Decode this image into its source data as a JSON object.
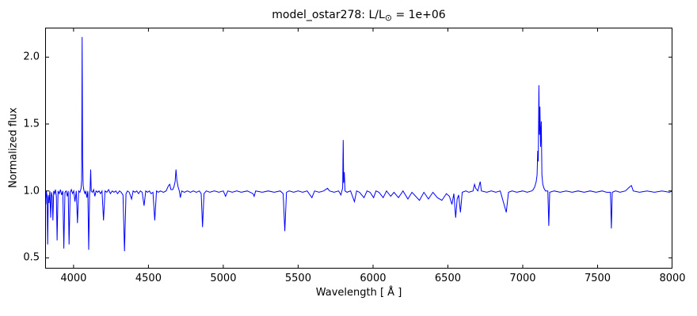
{
  "title": {
    "prefix": "model_ostar278: L/L",
    "sub": "⊙",
    "suffix": " = 1e+06"
  },
  "chart_data": {
    "type": "line",
    "title": "model_ostar278: L/L⊙ = 1e+06",
    "xlabel": "Wavelength [ Å ]",
    "ylabel": "Normalized flux",
    "xlim": [
      3810,
      8000
    ],
    "ylim": [
      0.42,
      2.22
    ],
    "grid": false,
    "legend": "none",
    "line_color": "#0000ff",
    "axis_color": "#000000",
    "x_ticks": [
      {
        "value": 4000,
        "label": "4000"
      },
      {
        "value": 4500,
        "label": "4500"
      },
      {
        "value": 5000,
        "label": "5000"
      },
      {
        "value": 5500,
        "label": "5500"
      },
      {
        "value": 6000,
        "label": "6000"
      },
      {
        "value": 6500,
        "label": "6500"
      },
      {
        "value": 7000,
        "label": "7000"
      },
      {
        "value": 7500,
        "label": "7500"
      },
      {
        "value": 8000,
        "label": "8000"
      }
    ],
    "y_ticks": [
      {
        "value": 0.5,
        "label": "0.5"
      },
      {
        "value": 1.0,
        "label": "1.0"
      },
      {
        "value": 1.5,
        "label": "1.5"
      },
      {
        "value": 2.0,
        "label": "2.0"
      }
    ],
    "points": [
      [
        3812,
        0.97
      ],
      [
        3815,
        0.9
      ],
      [
        3818,
        1.0
      ],
      [
        3823,
        0.95
      ],
      [
        3827,
        0.6
      ],
      [
        3831,
        0.97
      ],
      [
        3836,
        0.91
      ],
      [
        3841,
        1.0
      ],
      [
        3847,
        0.8
      ],
      [
        3852,
        0.99
      ],
      [
        3857,
        0.96
      ],
      [
        3862,
        0.78
      ],
      [
        3867,
        1.0
      ],
      [
        3873,
        0.98
      ],
      [
        3879,
        1.01
      ],
      [
        3885,
        0.96
      ],
      [
        3890,
        0.63
      ],
      [
        3896,
        1.0
      ],
      [
        3904,
        0.98
      ],
      [
        3912,
        1.01
      ],
      [
        3920,
        0.97
      ],
      [
        3928,
        1.0
      ],
      [
        3935,
        0.57
      ],
      [
        3942,
        0.99
      ],
      [
        3950,
        1.0
      ],
      [
        3958,
        0.96
      ],
      [
        3964,
        1.0
      ],
      [
        3970,
        0.6
      ],
      [
        3977,
        0.99
      ],
      [
        3985,
        1.01
      ],
      [
        3993,
        0.98
      ],
      [
        4001,
        1.0
      ],
      [
        4009,
        0.92
      ],
      [
        4018,
        1.0
      ],
      [
        4026,
        0.76
      ],
      [
        4034,
        1.0
      ],
      [
        4042,
        0.99
      ],
      [
        4050,
        1.02
      ],
      [
        4054,
        1.08
      ],
      [
        4057,
        2.15
      ],
      [
        4060,
        1.25
      ],
      [
        4064,
        1.04
      ],
      [
        4070,
        1.0
      ],
      [
        4076,
        0.98
      ],
      [
        4082,
        1.0
      ],
      [
        4089,
        0.95
      ],
      [
        4095,
        1.0
      ],
      [
        4101,
        0.56
      ],
      [
        4107,
        0.98
      ],
      [
        4110,
        1.0
      ],
      [
        4114,
        1.16
      ],
      [
        4118,
        1.0
      ],
      [
        4126,
        0.99
      ],
      [
        4134,
        1.01
      ],
      [
        4142,
        0.96
      ],
      [
        4150,
        1.0
      ],
      [
        4160,
        0.99
      ],
      [
        4170,
        1.0
      ],
      [
        4180,
        0.98
      ],
      [
        4190,
        1.0
      ],
      [
        4200,
        0.78
      ],
      [
        4210,
        1.0
      ],
      [
        4222,
        0.99
      ],
      [
        4234,
        1.01
      ],
      [
        4246,
        0.98
      ],
      [
        4258,
        1.0
      ],
      [
        4270,
        0.99
      ],
      [
        4282,
        1.0
      ],
      [
        4294,
        0.98
      ],
      [
        4306,
        1.0
      ],
      [
        4318,
        0.99
      ],
      [
        4330,
        0.97
      ],
      [
        4340,
        0.55
      ],
      [
        4350,
        0.98
      ],
      [
        4360,
        1.0
      ],
      [
        4372,
        0.99
      ],
      [
        4387,
        0.94
      ],
      [
        4398,
        1.0
      ],
      [
        4410,
        0.99
      ],
      [
        4422,
        1.0
      ],
      [
        4434,
        0.98
      ],
      [
        4446,
        1.0
      ],
      [
        4458,
        0.99
      ],
      [
        4471,
        0.89
      ],
      [
        4482,
        1.0
      ],
      [
        4494,
        0.99
      ],
      [
        4506,
        1.0
      ],
      [
        4518,
        0.98
      ],
      [
        4530,
        0.99
      ],
      [
        4542,
        0.78
      ],
      [
        4554,
        1.0
      ],
      [
        4566,
        0.99
      ],
      [
        4580,
        1.0
      ],
      [
        4600,
        0.99
      ],
      [
        4618,
        1.0
      ],
      [
        4634,
        1.04
      ],
      [
        4642,
        1.05
      ],
      [
        4650,
        1.01
      ],
      [
        4662,
        1.01
      ],
      [
        4670,
        1.03
      ],
      [
        4678,
        1.07
      ],
      [
        4684,
        1.16
      ],
      [
        4690,
        1.08
      ],
      [
        4698,
        1.03
      ],
      [
        4706,
        1.0
      ],
      [
        4713,
        0.95
      ],
      [
        4722,
        1.0
      ],
      [
        4740,
        0.99
      ],
      [
        4760,
        1.0
      ],
      [
        4780,
        0.99
      ],
      [
        4800,
        1.0
      ],
      [
        4820,
        0.99
      ],
      [
        4840,
        1.0
      ],
      [
        4852,
        0.98
      ],
      [
        4861,
        0.73
      ],
      [
        4871,
        0.98
      ],
      [
        4886,
        1.0
      ],
      [
        4910,
        0.99
      ],
      [
        4940,
        1.0
      ],
      [
        4970,
        0.99
      ],
      [
        5000,
        1.0
      ],
      [
        5015,
        0.96
      ],
      [
        5030,
        1.0
      ],
      [
        5060,
        0.99
      ],
      [
        5090,
        1.0
      ],
      [
        5120,
        0.99
      ],
      [
        5160,
        1.0
      ],
      [
        5198,
        0.98
      ],
      [
        5206,
        0.96
      ],
      [
        5216,
        1.0
      ],
      [
        5260,
        0.99
      ],
      [
        5300,
        1.0
      ],
      [
        5340,
        0.99
      ],
      [
        5380,
        1.0
      ],
      [
        5400,
        0.98
      ],
      [
        5411,
        0.7
      ],
      [
        5422,
        0.99
      ],
      [
        5440,
        1.0
      ],
      [
        5470,
        0.99
      ],
      [
        5500,
        1.0
      ],
      [
        5530,
        0.99
      ],
      [
        5560,
        1.0
      ],
      [
        5592,
        0.95
      ],
      [
        5610,
        1.0
      ],
      [
        5640,
        0.99
      ],
      [
        5670,
        1.0
      ],
      [
        5696,
        1.02
      ],
      [
        5710,
        1.0
      ],
      [
        5740,
        0.99
      ],
      [
        5770,
        1.0
      ],
      [
        5786,
        0.97
      ],
      [
        5792,
        1.0
      ],
      [
        5797,
        1.02
      ],
      [
        5801,
        1.38
      ],
      [
        5804,
        1.06
      ],
      [
        5808,
        1.14
      ],
      [
        5813,
        1.0
      ],
      [
        5826,
        0.99
      ],
      [
        5850,
        1.0
      ],
      [
        5876,
        0.92
      ],
      [
        5890,
        1.0
      ],
      [
        5910,
        0.99
      ],
      [
        5940,
        0.95
      ],
      [
        5960,
        1.0
      ],
      [
        5980,
        0.99
      ],
      [
        6004,
        0.95
      ],
      [
        6020,
        1.0
      ],
      [
        6040,
        0.99
      ],
      [
        6068,
        0.95
      ],
      [
        6090,
        1.0
      ],
      [
        6118,
        0.96
      ],
      [
        6140,
        0.99
      ],
      [
        6170,
        0.95
      ],
      [
        6200,
        1.0
      ],
      [
        6233,
        0.94
      ],
      [
        6260,
        0.99
      ],
      [
        6310,
        0.93
      ],
      [
        6340,
        0.99
      ],
      [
        6370,
        0.94
      ],
      [
        6400,
        0.99
      ],
      [
        6430,
        0.95
      ],
      [
        6460,
        0.93
      ],
      [
        6490,
        0.98
      ],
      [
        6510,
        0.96
      ],
      [
        6527,
        0.9
      ],
      [
        6540,
        0.98
      ],
      [
        6552,
        0.8
      ],
      [
        6562,
        0.94
      ],
      [
        6572,
        0.97
      ],
      [
        6584,
        0.84
      ],
      [
        6596,
        0.99
      ],
      [
        6620,
        1.0
      ],
      [
        6640,
        0.99
      ],
      [
        6668,
        1.0
      ],
      [
        6678,
        1.05
      ],
      [
        6686,
        1.02
      ],
      [
        6700,
        1.0
      ],
      [
        6716,
        1.07
      ],
      [
        6724,
        1.0
      ],
      [
        6760,
        0.99
      ],
      [
        6790,
        1.0
      ],
      [
        6820,
        0.99
      ],
      [
        6850,
        1.0
      ],
      [
        6890,
        0.84
      ],
      [
        6905,
        0.99
      ],
      [
        6930,
        1.0
      ],
      [
        6960,
        0.99
      ],
      [
        7000,
        1.0
      ],
      [
        7030,
        0.99
      ],
      [
        7060,
        1.0
      ],
      [
        7070,
        1.01
      ],
      [
        7080,
        1.03
      ],
      [
        7090,
        1.07
      ],
      [
        7096,
        1.12
      ],
      [
        7100,
        1.3
      ],
      [
        7104,
        1.22
      ],
      [
        7108,
        1.79
      ],
      [
        7111,
        1.42
      ],
      [
        7115,
        1.63
      ],
      [
        7119,
        1.33
      ],
      [
        7124,
        1.52
      ],
      [
        7128,
        1.12
      ],
      [
        7134,
        1.05
      ],
      [
        7142,
        1.02
      ],
      [
        7152,
        1.0
      ],
      [
        7168,
        1.0
      ],
      [
        7174,
        0.74
      ],
      [
        7180,
        0.99
      ],
      [
        7210,
        1.0
      ],
      [
        7250,
        0.99
      ],
      [
        7290,
        1.0
      ],
      [
        7330,
        0.99
      ],
      [
        7370,
        1.0
      ],
      [
        7410,
        0.99
      ],
      [
        7450,
        1.0
      ],
      [
        7490,
        0.99
      ],
      [
        7530,
        1.0
      ],
      [
        7560,
        0.99
      ],
      [
        7586,
        0.99
      ],
      [
        7592,
        0.72
      ],
      [
        7598,
        0.99
      ],
      [
        7620,
        1.0
      ],
      [
        7650,
        0.99
      ],
      [
        7686,
        1.0
      ],
      [
        7714,
        1.03
      ],
      [
        7726,
        1.04
      ],
      [
        7738,
        1.0
      ],
      [
        7780,
        0.99
      ],
      [
        7830,
        1.0
      ],
      [
        7880,
        0.99
      ],
      [
        7930,
        1.0
      ],
      [
        7980,
        0.99
      ],
      [
        8000,
        1.0
      ]
    ]
  }
}
